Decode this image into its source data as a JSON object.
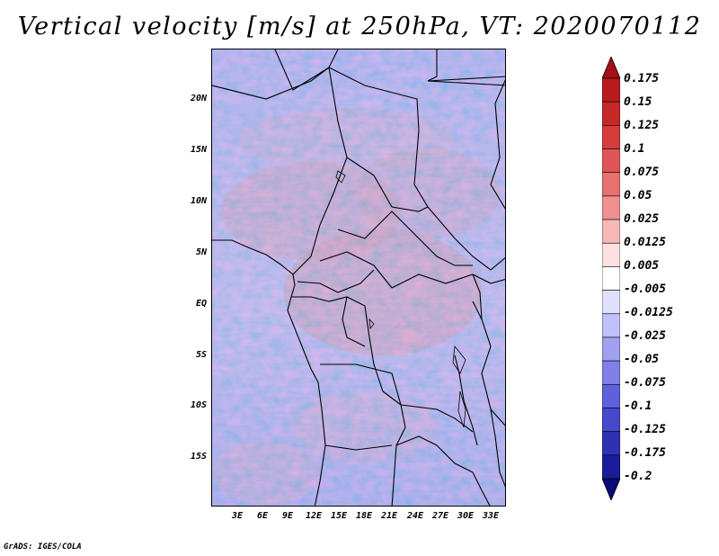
{
  "title": "Vertical velocity [m/s] at 250hPa, VT: 2020070112",
  "map": {
    "region": "Central Africa",
    "lat_labels": [
      "20N",
      "15N",
      "10N",
      "5N",
      "EQ",
      "5S",
      "10S",
      "15S"
    ],
    "lon_labels": [
      "3E",
      "6E",
      "9E",
      "12E",
      "15E",
      "18E",
      "21E",
      "24E",
      "27E",
      "30E",
      "33E"
    ],
    "lon_range": [
      0,
      35
    ],
    "lat_range": [
      -20,
      25
    ]
  },
  "colorbar": {
    "labels": [
      "0.175",
      "0.15",
      "0.125",
      "0.1",
      "0.075",
      "0.05",
      "0.025",
      "0.0125",
      "0.005",
      "-0.005",
      "-0.0125",
      "-0.025",
      "-0.05",
      "-0.075",
      "-0.1",
      "-0.125",
      "-0.175",
      "-0.2"
    ],
    "colors": [
      "#a50f15",
      "#b71c1c",
      "#c62828",
      "#d63c3c",
      "#e05555",
      "#e87070",
      "#f09090",
      "#f7b8b8",
      "#fde0e0",
      "#ffffff",
      "#e0e0ff",
      "#c0c0fa",
      "#a0a0f0",
      "#8080e8",
      "#6060dc",
      "#4848cc",
      "#3030b4",
      "#1c1c9a",
      "#0a0a78"
    ]
  },
  "credit": "GrADS: IGES/COLA"
}
